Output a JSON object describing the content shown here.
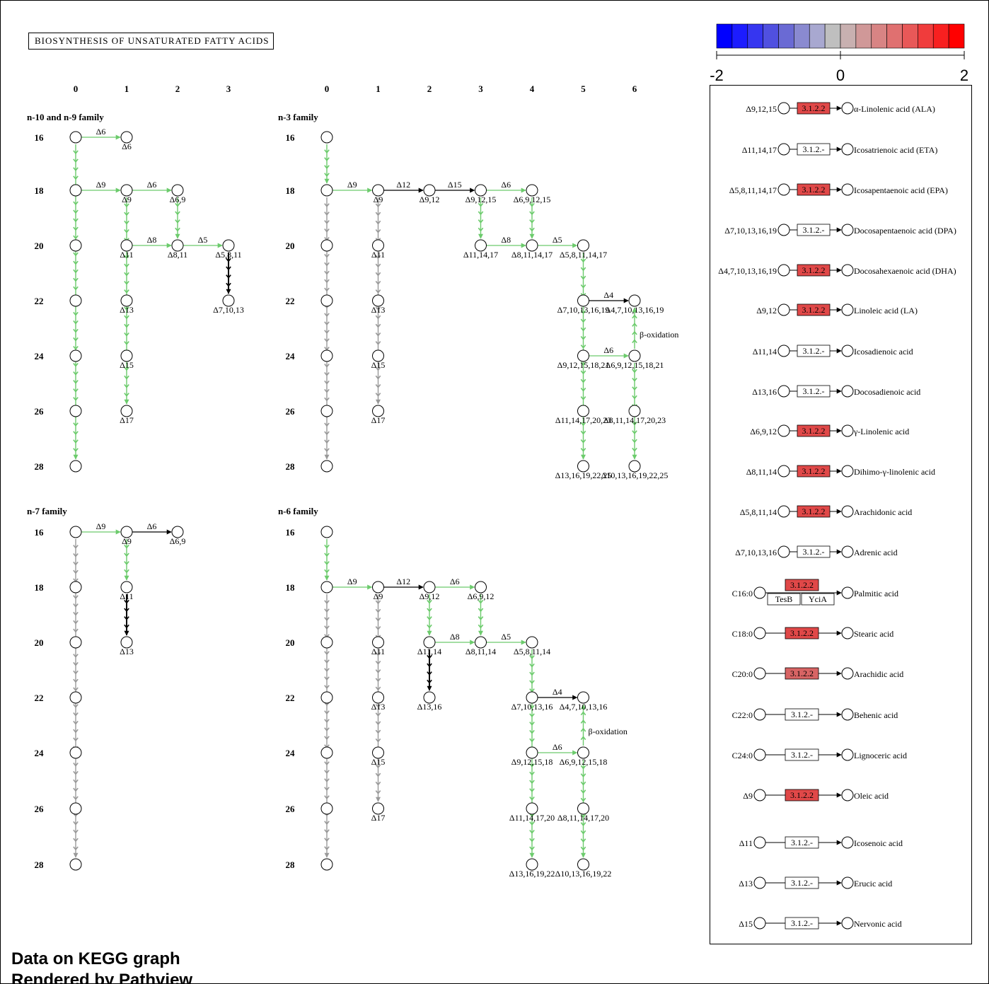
{
  "title": "BIOSYNTHESIS OF UNSATURATED FATTY ACIDS",
  "footer": {
    "line1": "Data on KEGG graph",
    "line2": "Rendered by Pathview"
  },
  "colors": {
    "green": "#6ccb6c",
    "gray": "#999999",
    "black": "#000000",
    "high": "#e04848",
    "mid": "#d86464"
  },
  "scale": {
    "ticks": [
      "-2",
      "0",
      "2"
    ],
    "colors": [
      "#0000ff",
      "#1c1cff",
      "#3636f0",
      "#5050e0",
      "#6a6ad4",
      "#8a8ad0",
      "#a8a8d0",
      "#bfbfbf",
      "#c8b0b0",
      "#d09898",
      "#d88484",
      "#e07070",
      "#e85858",
      "#f03c3c",
      "#f82020",
      "#ff0000"
    ]
  },
  "families": [
    {
      "label": "n-10 and n-9 family",
      "x0": 107,
      "dx": 72,
      "cols": [
        "0",
        "1",
        "2",
        "3"
      ]
    },
    {
      "label": "n-3 family",
      "x0": 462,
      "dx": 72,
      "cols": [
        "0",
        "1",
        "2",
        "3",
        "4",
        "5",
        "6"
      ]
    },
    {
      "label": "n-7 family",
      "x0": 107,
      "dx": 72,
      "cols": []
    },
    {
      "label": "n-6 family",
      "x0": 462,
      "dx": 72,
      "cols": []
    }
  ],
  "rows": [
    "16",
    "18",
    "20",
    "22",
    "24",
    "26",
    "28"
  ],
  "nodes": [
    [
      "n10",
      0,
      16,
      ""
    ],
    [
      "n10",
      1,
      16,
      "Δ6"
    ],
    [
      "n10",
      0,
      18,
      ""
    ],
    [
      "n10",
      1,
      18,
      "Δ9"
    ],
    [
      "n10",
      2,
      18,
      "Δ6,9"
    ],
    [
      "n10",
      0,
      20,
      ""
    ],
    [
      "n10",
      1,
      20,
      "Δ11"
    ],
    [
      "n10",
      2,
      20,
      "Δ8,11"
    ],
    [
      "n10",
      3,
      20,
      "Δ5,8,11"
    ],
    [
      "n10",
      0,
      22,
      ""
    ],
    [
      "n10",
      1,
      22,
      "Δ13"
    ],
    [
      "n10",
      3,
      22,
      "Δ7,10,13"
    ],
    [
      "n10",
      0,
      24,
      ""
    ],
    [
      "n10",
      1,
      24,
      "Δ15"
    ],
    [
      "n10",
      0,
      26,
      ""
    ],
    [
      "n10",
      1,
      26,
      "Δ17"
    ],
    [
      "n10",
      0,
      28,
      ""
    ],
    [
      "n3",
      0,
      16,
      ""
    ],
    [
      "n3",
      0,
      18,
      ""
    ],
    [
      "n3",
      1,
      18,
      "Δ9"
    ],
    [
      "n3",
      2,
      18,
      "Δ9,12"
    ],
    [
      "n3",
      3,
      18,
      "Δ9,12,15"
    ],
    [
      "n3",
      4,
      18,
      "Δ6,9,12,15"
    ],
    [
      "n3",
      0,
      20,
      ""
    ],
    [
      "n3",
      1,
      20,
      "Δ11"
    ],
    [
      "n3",
      3,
      20,
      "Δ11,14,17"
    ],
    [
      "n3",
      4,
      20,
      "Δ8,11,14,17"
    ],
    [
      "n3",
      5,
      20,
      "Δ5,8,11,14,17"
    ],
    [
      "n3",
      0,
      22,
      ""
    ],
    [
      "n3",
      1,
      22,
      "Δ13"
    ],
    [
      "n3",
      5,
      22,
      "Δ7,10,13,16,19"
    ],
    [
      "n3",
      6,
      22,
      "Δ4,7,10,13,16,19"
    ],
    [
      "n3",
      0,
      24,
      ""
    ],
    [
      "n3",
      1,
      24,
      "Δ15"
    ],
    [
      "n3",
      5,
      24,
      "Δ9,12,15,18,21"
    ],
    [
      "n3",
      6,
      24,
      "Δ6,9,12,15,18,21"
    ],
    [
      "n3",
      0,
      26,
      ""
    ],
    [
      "n3",
      1,
      26,
      "Δ17"
    ],
    [
      "n3",
      5,
      26,
      "Δ11,14,17,20,23"
    ],
    [
      "n3",
      6,
      26,
      "Δ8,11,14,17,20,23"
    ],
    [
      "n3",
      0,
      28,
      ""
    ],
    [
      "n3",
      5,
      28,
      "Δ13,16,19,22,25"
    ],
    [
      "n3",
      6,
      28,
      "Δ10,13,16,19,22,25"
    ],
    [
      "n7",
      0,
      16,
      ""
    ],
    [
      "n7",
      1,
      16,
      "Δ9"
    ],
    [
      "n7",
      2,
      16,
      "Δ6,9"
    ],
    [
      "n7",
      0,
      18,
      ""
    ],
    [
      "n7",
      1,
      18,
      "Δ11"
    ],
    [
      "n7",
      0,
      20,
      ""
    ],
    [
      "n7",
      1,
      20,
      "Δ13"
    ],
    [
      "n7",
      0,
      22,
      ""
    ],
    [
      "n7",
      0,
      24,
      ""
    ],
    [
      "n7",
      0,
      26,
      ""
    ],
    [
      "n7",
      0,
      28,
      ""
    ],
    [
      "n6",
      0,
      16,
      ""
    ],
    [
      "n6",
      0,
      18,
      ""
    ],
    [
      "n6",
      1,
      18,
      "Δ9"
    ],
    [
      "n6",
      2,
      18,
      "Δ9,12"
    ],
    [
      "n6",
      3,
      18,
      "Δ6,9,12"
    ],
    [
      "n6",
      0,
      20,
      ""
    ],
    [
      "n6",
      1,
      20,
      "Δ11"
    ],
    [
      "n6",
      2,
      20,
      "Δ11,14"
    ],
    [
      "n6",
      3,
      20,
      "Δ8,11,14"
    ],
    [
      "n6",
      4,
      20,
      "Δ5,8,11,14"
    ],
    [
      "n6",
      0,
      22,
      ""
    ],
    [
      "n6",
      1,
      22,
      "Δ13"
    ],
    [
      "n6",
      2,
      22,
      "Δ13,16"
    ],
    [
      "n6",
      4,
      22,
      "Δ7,10,13,16"
    ],
    [
      "n6",
      5,
      22,
      "Δ4,7,10,13,16"
    ],
    [
      "n6",
      0,
      24,
      ""
    ],
    [
      "n6",
      1,
      24,
      "Δ15"
    ],
    [
      "n6",
      4,
      24,
      "Δ9,12,15,18"
    ],
    [
      "n6",
      5,
      24,
      "Δ6,9,12,15,18"
    ],
    [
      "n6",
      0,
      26,
      ""
    ],
    [
      "n6",
      1,
      26,
      "Δ17"
    ],
    [
      "n6",
      4,
      26,
      "Δ11,14,17,20"
    ],
    [
      "n6",
      5,
      26,
      "Δ8,11,14,17,20"
    ],
    [
      "n6",
      0,
      28,
      ""
    ],
    [
      "n6",
      4,
      28,
      "Δ13,16,19,22"
    ],
    [
      "n6",
      5,
      28,
      "Δ10,13,16,19,22"
    ]
  ],
  "h_edges": [
    [
      "n10",
      0,
      1,
      16,
      "Δ6",
      "green"
    ],
    [
      "n10",
      0,
      1,
      18,
      "Δ9",
      "green"
    ],
    [
      "n10",
      1,
      2,
      18,
      "Δ6",
      "green"
    ],
    [
      "n10",
      1,
      2,
      20,
      "Δ8",
      "green"
    ],
    [
      "n10",
      2,
      3,
      20,
      "Δ5",
      "green"
    ],
    [
      "n3",
      0,
      1,
      18,
      "Δ9",
      "green"
    ],
    [
      "n3",
      1,
      2,
      18,
      "Δ12",
      "black"
    ],
    [
      "n3",
      2,
      3,
      18,
      "Δ15",
      "black"
    ],
    [
      "n3",
      3,
      4,
      18,
      "Δ6",
      "green"
    ],
    [
      "n3",
      3,
      4,
      20,
      "Δ8",
      "green"
    ],
    [
      "n3",
      4,
      5,
      20,
      "Δ5",
      "green"
    ],
    [
      "n3",
      5,
      6,
      22,
      "Δ4",
      "black"
    ],
    [
      "n3",
      5,
      6,
      24,
      "Δ6",
      "green"
    ],
    [
      "n7",
      0,
      1,
      16,
      "Δ9",
      "green"
    ],
    [
      "n7",
      1,
      2,
      16,
      "Δ6",
      "black"
    ],
    [
      "n6",
      0,
      1,
      18,
      "Δ9",
      "green"
    ],
    [
      "n6",
      1,
      2,
      18,
      "Δ12",
      "black"
    ],
    [
      "n6",
      2,
      3,
      18,
      "Δ6",
      "green"
    ],
    [
      "n6",
      2,
      3,
      20,
      "Δ8",
      "green"
    ],
    [
      "n6",
      3,
      4,
      20,
      "Δ5",
      "green"
    ],
    [
      "n6",
      4,
      5,
      22,
      "Δ4",
      "black"
    ],
    [
      "n6",
      4,
      5,
      24,
      "Δ6",
      "green"
    ]
  ],
  "v_edges": [
    [
      "n10",
      0,
      16,
      28,
      "green"
    ],
    [
      "n10",
      1,
      18,
      26,
      "green"
    ],
    [
      "n10",
      2,
      18,
      20,
      "green"
    ],
    [
      "n10",
      3,
      20,
      22,
      "black"
    ],
    [
      "n3",
      0,
      16,
      18,
      "green"
    ],
    [
      "n3",
      0,
      18,
      28,
      "gray"
    ],
    [
      "n3",
      1,
      18,
      26,
      "gray"
    ],
    [
      "n3",
      3,
      18,
      20,
      "green"
    ],
    [
      "n3",
      4,
      18,
      20,
      "green"
    ],
    [
      "n3",
      5,
      20,
      28,
      "green"
    ],
    [
      "n3",
      6,
      24,
      28,
      "green"
    ],
    [
      "n3",
      6,
      24,
      22,
      "green"
    ],
    [
      "n7",
      0,
      16,
      28,
      "gray"
    ],
    [
      "n7",
      1,
      16,
      18,
      "green"
    ],
    [
      "n7",
      1,
      18,
      20,
      "black"
    ],
    [
      "n6",
      0,
      16,
      18,
      "green"
    ],
    [
      "n6",
      0,
      18,
      28,
      "gray"
    ],
    [
      "n6",
      1,
      18,
      26,
      "gray"
    ],
    [
      "n6",
      2,
      18,
      20,
      "green"
    ],
    [
      "n6",
      3,
      18,
      20,
      "green"
    ],
    [
      "n6",
      2,
      20,
      22,
      "black"
    ],
    [
      "n6",
      4,
      20,
      28,
      "green"
    ],
    [
      "n6",
      5,
      24,
      28,
      "green"
    ],
    [
      "n6",
      5,
      24,
      22,
      "green"
    ]
  ],
  "beta_labels": [
    [
      "n3",
      6,
      23,
      "β-oxidation"
    ],
    [
      "n6",
      5,
      23,
      "β-oxidation"
    ]
  ],
  "legend": [
    {
      "left": "Δ9,12,15",
      "enzyme": "3.1.2.2",
      "color": "#e04848",
      "product": "α-Linolenic acid (ALA)"
    },
    {
      "left": "Δ11,14,17",
      "enzyme": "3.1.2.-",
      "color": "#ffffff",
      "product": "Icosatrienoic acid (ETA)"
    },
    {
      "left": "Δ5,8,11,14,17",
      "enzyme": "3.1.2.2",
      "color": "#e04848",
      "product": "Icosapentaenoic acid (EPA)"
    },
    {
      "left": "Δ7,10,13,16,19",
      "enzyme": "3.1.2.-",
      "color": "#ffffff",
      "product": "Docosapentaenoic acid (DPA)"
    },
    {
      "left": "Δ4,7,10,13,16,19",
      "enzyme": "3.1.2.2",
      "color": "#e04848",
      "product": "Docosahexaenoic acid (DHA)"
    },
    {
      "left": "Δ9,12",
      "enzyme": "3.1.2.2",
      "color": "#e04848",
      "product": "Linoleic acid (LA)"
    },
    {
      "left": "Δ11,14",
      "enzyme": "3.1.2.-",
      "color": "#ffffff",
      "product": "Icosadienoic acid"
    },
    {
      "left": "Δ13,16",
      "enzyme": "3.1.2.-",
      "color": "#ffffff",
      "product": "Docosadienoic acid"
    },
    {
      "left": "Δ6,9,12",
      "enzyme": "3.1.2.2",
      "color": "#e04848",
      "product": "γ-Linolenic acid"
    },
    {
      "left": "Δ8,11,14",
      "enzyme": "3.1.2.2",
      "color": "#e04848",
      "product": "Dihimo-γ-linolenic acid"
    },
    {
      "left": "Δ5,8,11,14",
      "enzyme": "3.1.2.2",
      "color": "#e04848",
      "product": "Arachidonic acid"
    },
    {
      "left": "Δ7,10,13,16",
      "enzyme": "3.1.2.-",
      "color": "#ffffff",
      "product": "Adrenic acid"
    },
    {
      "left": "C16:0",
      "enzyme": "3.1.2.2",
      "color": "#e04848",
      "product": "Palmitic acid",
      "extra": [
        "TesB",
        "YciA"
      ]
    },
    {
      "left": "C18:0",
      "enzyme": "3.1.2.2",
      "color": "#e04848",
      "product": "Stearic acid"
    },
    {
      "left": "C20:0",
      "enzyme": "3.1.2.2",
      "color": "#d86464",
      "product": "Arachidic acid"
    },
    {
      "left": "C22:0",
      "enzyme": "3.1.2.-",
      "color": "#ffffff",
      "product": "Behenic acid"
    },
    {
      "left": "C24:0",
      "enzyme": "3.1.2.-",
      "color": "#ffffff",
      "product": "Lignoceric acid"
    },
    {
      "left": "Δ9",
      "enzyme": "3.1.2.2",
      "color": "#e04848",
      "product": "Oleic acid"
    },
    {
      "left": "Δ11",
      "enzyme": "3.1.2.-",
      "color": "#ffffff",
      "product": "Icosenoic acid"
    },
    {
      "left": "Δ13",
      "enzyme": "3.1.2.-",
      "color": "#ffffff",
      "product": "Erucic acid"
    },
    {
      "left": "Δ15",
      "enzyme": "3.1.2.-",
      "color": "#ffffff",
      "product": "Nervonic acid"
    }
  ]
}
